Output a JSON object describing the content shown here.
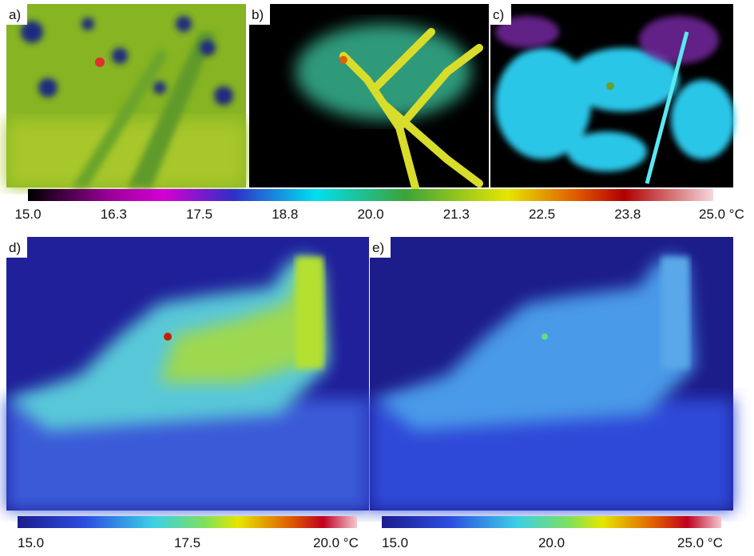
{
  "panels": [
    {
      "label": "a)"
    },
    {
      "label": "b)"
    },
    {
      "label": "c)"
    },
    {
      "label": "d)"
    },
    {
      "label": "e)"
    }
  ],
  "colorbars": [
    {
      "ticks": [
        "15.0",
        "16.3",
        "17.5",
        "18.8",
        "20.0",
        "21.3",
        "22.5",
        "23.8",
        "25.0 °C"
      ]
    },
    {
      "ticks": [
        "15.0",
        "17.5",
        "20.0 °C"
      ]
    },
    {
      "ticks": [
        "15.0",
        "20.0",
        "25.0 °C"
      ]
    }
  ]
}
